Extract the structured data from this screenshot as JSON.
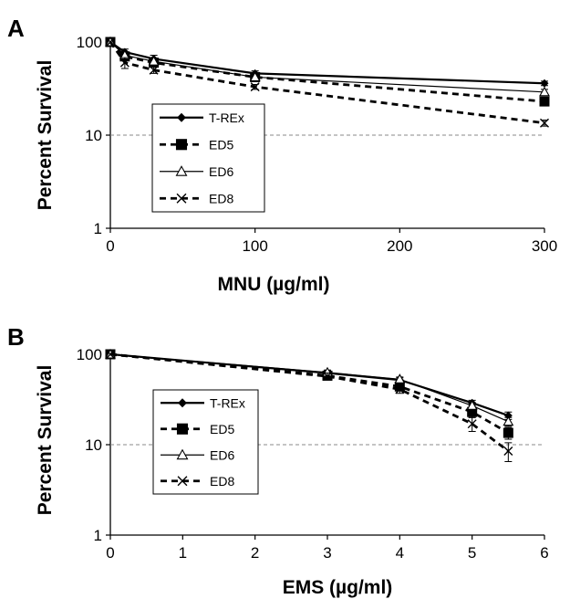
{
  "chart_data": [
    {
      "panel": "A",
      "type": "line",
      "xlabel": "MNU (µg/ml)",
      "ylabel": "Percent Survival",
      "xlim": [
        0,
        300
      ],
      "ylim": [
        1,
        100
      ],
      "yscale": "log",
      "xticks": [
        0,
        100,
        200,
        300
      ],
      "yticks": [
        1,
        10,
        100
      ],
      "reference_line_y": 10,
      "legend_position": "center-left",
      "series": [
        {
          "name": "T-REx",
          "marker": "diamond",
          "line": "solid-thick",
          "x": [
            0,
            10,
            30,
            100,
            300
          ],
          "y": [
            100,
            78,
            66,
            46,
            36
          ],
          "err": [
            0,
            6,
            6,
            3,
            2
          ]
        },
        {
          "name": "ED5",
          "marker": "square",
          "line": "dashed",
          "x": [
            0,
            10,
            30,
            100,
            300
          ],
          "y": [
            100,
            70,
            60,
            42,
            23
          ],
          "err": [
            0,
            5,
            5,
            3,
            2
          ]
        },
        {
          "name": "ED6",
          "marker": "triangle",
          "line": "solid-thin",
          "x": [
            0,
            10,
            30,
            100,
            300
          ],
          "y": [
            100,
            72,
            62,
            42,
            29
          ],
          "err": [
            0,
            5,
            5,
            3,
            2
          ]
        },
        {
          "name": "ED8",
          "marker": "x",
          "line": "dashed",
          "x": [
            0,
            10,
            30,
            100,
            300
          ],
          "y": [
            100,
            60,
            50,
            33,
            13.5
          ],
          "err": [
            0,
            8,
            4,
            2,
            1
          ]
        }
      ]
    },
    {
      "panel": "B",
      "type": "line",
      "xlabel": "EMS (µg/ml)",
      "ylabel": "Percent Survival",
      "xlim": [
        0,
        6
      ],
      "ylim": [
        1,
        100
      ],
      "yscale": "log",
      "xticks": [
        0,
        1,
        2,
        3,
        4,
        5,
        6
      ],
      "yticks": [
        1,
        10,
        100
      ],
      "reference_line_y": 10,
      "legend_position": "center-left",
      "series": [
        {
          "name": "T-REx",
          "marker": "diamond",
          "line": "solid-thick",
          "x": [
            0,
            3,
            4,
            5,
            5.5
          ],
          "y": [
            100,
            62,
            52,
            29,
            21
          ],
          "err": [
            0,
            4,
            3,
            2,
            2
          ]
        },
        {
          "name": "ED5",
          "marker": "square",
          "line": "dashed",
          "x": [
            0,
            3,
            4,
            5,
            5.5
          ],
          "y": [
            100,
            58,
            44,
            23,
            13.5
          ],
          "err": [
            0,
            5,
            4,
            3,
            2
          ]
        },
        {
          "name": "ED6",
          "marker": "triangle",
          "line": "solid-thin",
          "x": [
            0,
            3,
            4,
            5,
            5.5
          ],
          "y": [
            100,
            63,
            53,
            27,
            18
          ],
          "err": [
            0,
            4,
            3,
            2,
            2
          ]
        },
        {
          "name": "ED8",
          "marker": "x",
          "line": "dashed",
          "x": [
            0,
            3,
            4,
            5,
            5.5
          ],
          "y": [
            100,
            57,
            41,
            17,
            8.5
          ],
          "err": [
            0,
            5,
            4,
            3,
            2
          ]
        }
      ]
    }
  ]
}
